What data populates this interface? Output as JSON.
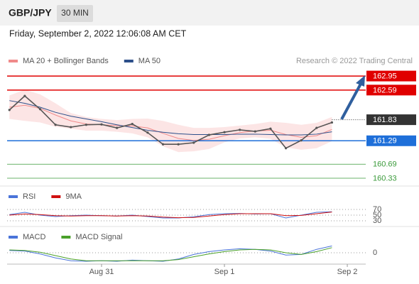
{
  "header": {
    "symbol": "GBP/JPY",
    "interval": "30 MIN",
    "timestamp": "Friday, September 2, 2022 12:06:08 AM CET"
  },
  "chart_data": [
    {
      "type": "price",
      "credit": "Research © 2022 Trading Central",
      "x": [
        -18,
        -15,
        -12,
        -9,
        -6,
        -3,
        0,
        3,
        6,
        9,
        12,
        15,
        18,
        21,
        24,
        27,
        30,
        33,
        36,
        39,
        42,
        45
      ],
      "values": [
        162.08,
        162.44,
        162.1,
        161.7,
        161.64,
        161.7,
        161.71,
        161.62,
        161.72,
        161.5,
        161.2,
        161.2,
        161.24,
        161.44,
        161.51,
        161.57,
        161.53,
        161.6,
        161.1,
        161.3,
        161.62,
        161.76
      ],
      "color": "#555555",
      "series": [
        {
          "name": "MA 20 + Bollinger Bands",
          "color": "#f08a8a",
          "values": [
            162.15,
            162.2,
            162.12,
            161.95,
            161.8,
            161.72,
            161.7,
            161.68,
            161.67,
            161.62,
            161.48,
            161.35,
            161.3,
            161.33,
            161.42,
            161.5,
            161.54,
            161.56,
            161.45,
            161.38,
            161.42,
            161.58
          ],
          "upper": [
            162.45,
            162.6,
            162.48,
            162.25,
            162.0,
            161.9,
            161.85,
            161.82,
            161.85,
            161.86,
            161.8,
            161.7,
            161.62,
            161.62,
            161.64,
            161.68,
            161.72,
            161.78,
            161.75,
            161.7,
            161.75,
            161.9
          ],
          "lower": [
            161.85,
            161.8,
            161.76,
            161.65,
            161.6,
            161.55,
            161.55,
            161.52,
            161.48,
            161.38,
            161.15,
            161.0,
            161.02,
            161.08,
            161.25,
            161.35,
            161.38,
            161.34,
            161.12,
            161.06,
            161.1,
            161.28
          ]
        },
        {
          "name": "MA 50",
          "color": "#2c4f8a",
          "values": [
            162.32,
            162.25,
            162.15,
            162.02,
            161.92,
            161.85,
            161.78,
            161.7,
            161.63,
            161.56,
            161.51,
            161.47,
            161.45,
            161.45,
            161.45,
            161.46,
            161.46,
            161.45,
            161.44,
            161.44,
            161.46,
            161.52
          ]
        }
      ],
      "levels": [
        {
          "value": 162.95,
          "color": "#e00000",
          "boxed": true,
          "dotted": false
        },
        {
          "value": 162.59,
          "color": "#e00000",
          "boxed": true,
          "dotted": false
        },
        {
          "value": 161.83,
          "color": "#333333",
          "boxed": true,
          "dotted": true
        },
        {
          "value": 161.29,
          "color": "#1e6fd9",
          "boxed": true,
          "dotted": false
        },
        {
          "value": 160.69,
          "color": "#3a9a3a",
          "boxed": false,
          "dotted": false
        },
        {
          "value": 160.33,
          "color": "#3a9a3a",
          "boxed": false,
          "dotted": false
        }
      ],
      "xlim": [
        -18.45,
        51.6
      ],
      "ylim": [
        160.13,
        163.17
      ]
    },
    {
      "type": "oscillator",
      "x": [
        -18,
        -15,
        -12,
        -9,
        -6,
        -3,
        0,
        3,
        6,
        9,
        12,
        15,
        18,
        21,
        24,
        27,
        30,
        33,
        36,
        39,
        42,
        45
      ],
      "series": [
        {
          "name": "RSI",
          "color": "#4a74d9",
          "values": [
            52,
            60,
            50,
            45,
            48,
            50,
            48,
            47,
            50,
            45,
            40,
            40,
            44,
            52,
            55,
            56,
            54,
            55,
            40,
            50,
            60,
            62
          ]
        },
        {
          "name": "9MA",
          "color": "#d01010",
          "values": [
            50,
            54,
            52,
            48,
            47,
            48,
            48,
            47,
            48,
            47,
            43,
            41,
            42,
            47,
            52,
            55,
            55,
            55,
            48,
            49,
            55,
            61
          ]
        }
      ],
      "xlim": [
        -18.45,
        51.6
      ],
      "ylim": [
        0,
        100
      ],
      "yticks": [
        70,
        50,
        30
      ]
    },
    {
      "type": "oscillator",
      "x": [
        -18,
        -15,
        -12,
        -9,
        -6,
        -3,
        0,
        3,
        6,
        9,
        12,
        15,
        18,
        21,
        24,
        27,
        30,
        33,
        36,
        39,
        42,
        45
      ],
      "series": [
        {
          "name": "MACD",
          "color": "#4a74d9",
          "values": [
            0.04,
            0.03,
            -0.02,
            -0.09,
            -0.14,
            -0.15,
            -0.14,
            -0.15,
            -0.13,
            -0.14,
            -0.15,
            -0.11,
            -0.03,
            0.02,
            0.05,
            0.07,
            0.06,
            0.03,
            -0.04,
            -0.03,
            0.06,
            0.12
          ]
        },
        {
          "name": "MACD Signal",
          "color": "#4aa02a",
          "values": [
            0.05,
            0.04,
            0.01,
            -0.05,
            -0.11,
            -0.14,
            -0.14,
            -0.14,
            -0.14,
            -0.14,
            -0.14,
            -0.12,
            -0.07,
            -0.02,
            0.02,
            0.05,
            0.06,
            0.05,
            0.0,
            -0.03,
            0.02,
            0.09
          ]
        }
      ],
      "xlim": [
        -18.45,
        51.6
      ],
      "ylim": [
        -0.35,
        0.35
      ],
      "yticks": [
        0
      ],
      "xticks": [
        {
          "value": 0,
          "label": "Aug 31"
        },
        {
          "value": 24,
          "label": "Sep 1"
        },
        {
          "value": 48,
          "label": "Sep 2"
        }
      ]
    }
  ]
}
